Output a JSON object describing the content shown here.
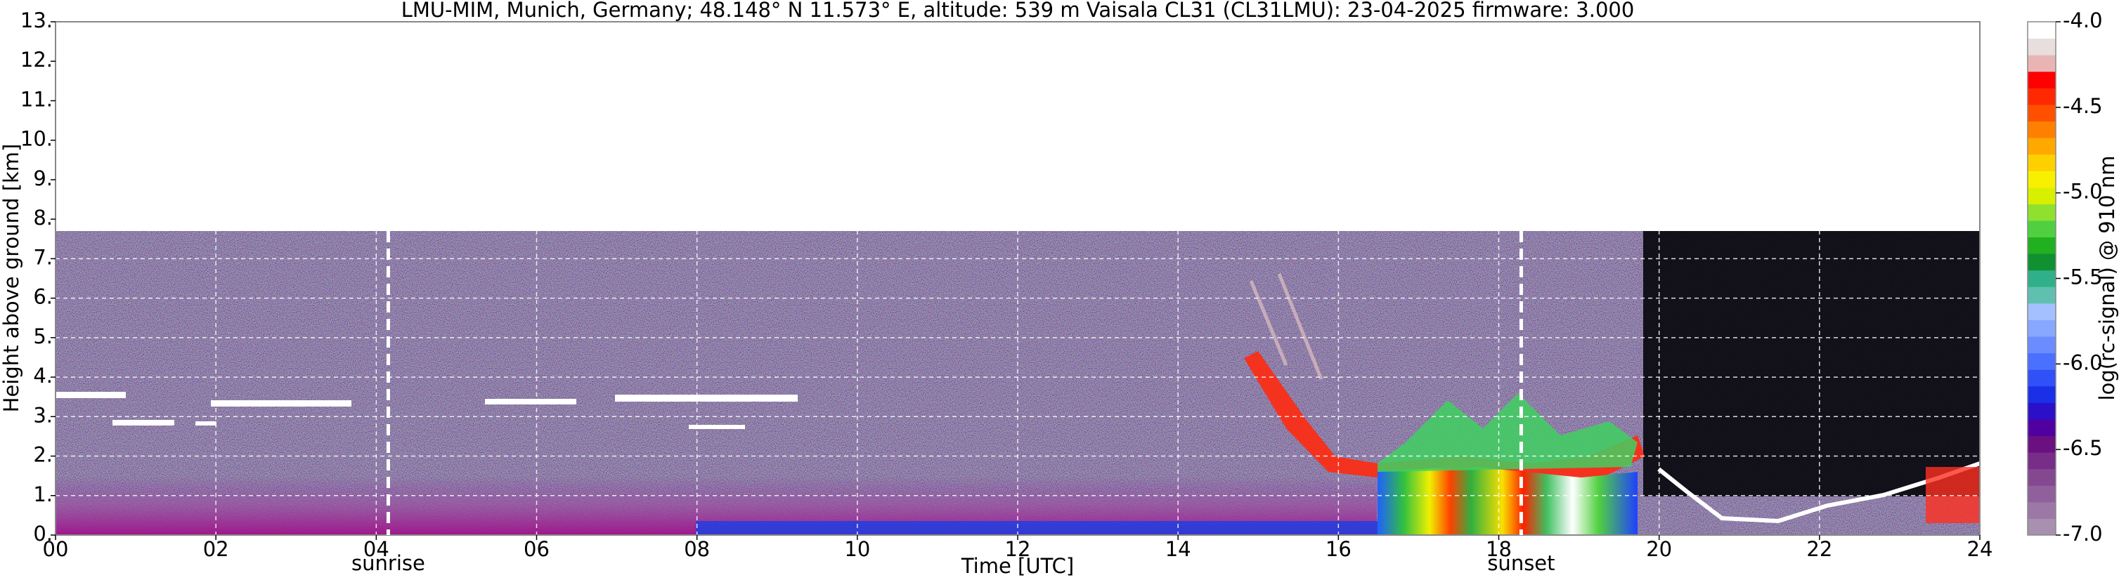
{
  "chart_data": {
    "type": "heatmap",
    "title": "LMU-MIM, Munich, Germany; 48.148° N 11.573° E, altitude: 539 m    Vaisala CL31 (CL31LMU): 23-04-2025    firmware: 3.000",
    "xlabel": "Time [UTC]",
    "ylabel": "Height above ground [km]",
    "xlim": [
      0,
      24
    ],
    "xticks": [
      {
        "value": 0,
        "label": "00"
      },
      {
        "value": 2,
        "label": "02"
      },
      {
        "value": 4,
        "label": "04"
      },
      {
        "value": 6,
        "label": "06"
      },
      {
        "value": 8,
        "label": "08"
      },
      10,
      12,
      14,
      16,
      18,
      20,
      22,
      24
    ],
    "ylim": [
      0,
      13
    ],
    "yticks": [
      {
        "value": 0,
        "label": "0."
      },
      {
        "value": 1,
        "label": "1."
      },
      {
        "value": 2,
        "label": "2."
      },
      {
        "value": 3,
        "label": "3."
      },
      {
        "value": 4,
        "label": "4."
      },
      {
        "value": 5,
        "label": "5."
      },
      {
        "value": 6,
        "label": "6."
      },
      {
        "value": 7,
        "label": "7."
      },
      {
        "value": 8,
        "label": "8."
      },
      {
        "value": 9,
        "label": "9."
      },
      {
        "value": 10,
        "label": "10."
      },
      {
        "value": 11,
        "label": "11."
      },
      {
        "value": 12,
        "label": "12."
      },
      {
        "value": 13,
        "label": "13."
      }
    ],
    "grid": true,
    "annotations": [
      {
        "text": "sunrise",
        "x": 4.15
      },
      {
        "text": "sunset",
        "x": 18.28
      }
    ],
    "colorbar": {
      "label": "log(rc-signal) @ 910 nm",
      "lim": [
        -7,
        -4
      ],
      "ticks": [
        {
          "value": -7,
          "label": "-7.0"
        },
        {
          "value": -6.5,
          "label": "-6.5"
        },
        {
          "value": -6,
          "label": "-6.0"
        },
        {
          "value": -5.5,
          "label": "-5.5"
        },
        {
          "value": -5,
          "label": "-5.0"
        },
        {
          "value": -4.5,
          "label": "-4.5"
        },
        {
          "value": -4,
          "label": "-4.0"
        }
      ],
      "colors": [
        "#a890b0",
        "#9c78a6",
        "#90609c",
        "#844890",
        "#782e88",
        "#6a1080",
        "#5000a0",
        "#2a10c8",
        "#1a30e8",
        "#3050f8",
        "#4a70ff",
        "#6a8cff",
        "#88a8ff",
        "#a4c0ff",
        "#60c0b0",
        "#30b088",
        "#109030",
        "#20b020",
        "#50d040",
        "#90e030",
        "#d8f000",
        "#f8f000",
        "#ffd000",
        "#ffa800",
        "#ff8000",
        "#ff5000",
        "#ff2800",
        "#ff0000",
        "#e8b4b4",
        "#e8dede",
        "#ffffff"
      ]
    }
  }
}
